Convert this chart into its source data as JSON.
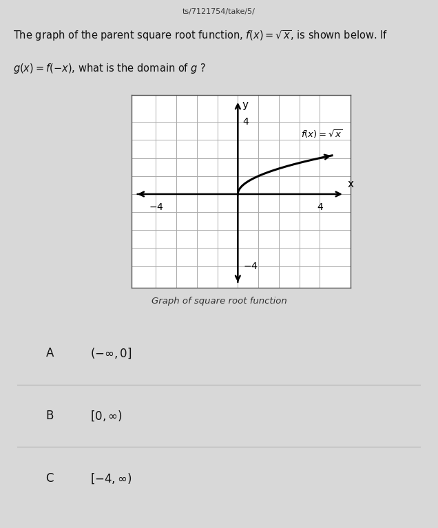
{
  "page_bg": "#d8d8d8",
  "url_text": "ts/7121754/take/5/",
  "question_line1": "The graph of the parent square root function, $f(x)=\\sqrt{x}$, is shown below. If",
  "question_line2": "$g(x)=f(-x)$, what is the domain of $g$ ?",
  "graph_bg": "#e8e8e8",
  "graph_inner_bg": "#ffffff",
  "grid_color": "#aaaaaa",
  "axis_color": "#000000",
  "curve_color": "#000000",
  "curve_label": "$f(x)=\\sqrt{x}$",
  "graph_caption": "Graph of square root function",
  "options": [
    {
      "letter": "A",
      "text": "$(-\\infty, 0]$"
    },
    {
      "letter": "B",
      "text": "$[0, \\infty)$"
    },
    {
      "letter": "C",
      "text": "$[-4, \\infty)$"
    }
  ],
  "option_bg": "#e8e8e8",
  "option_divider": "#cccccc"
}
